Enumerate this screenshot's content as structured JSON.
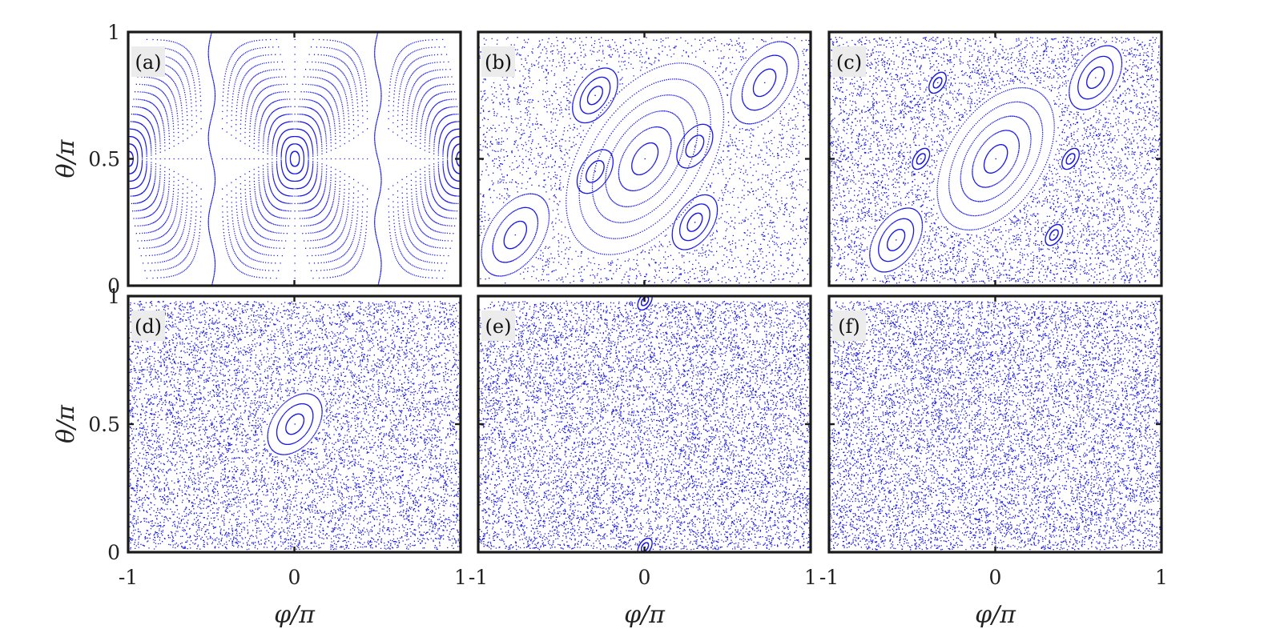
{
  "chart_data": {
    "type": "scatter",
    "layout": "2x3 grid of Poincaré section panels",
    "color": "#1a1ae6",
    "xlabel": "φ/π",
    "ylabel": "θ/π",
    "xlim": [
      -1,
      1
    ],
    "ylim": [
      0,
      1
    ],
    "xticks": [
      "-1",
      "0",
      "1"
    ],
    "yticks": [
      "0",
      "0.5",
      "1"
    ],
    "panels": [
      {
        "label": "(a)",
        "regime": "regular",
        "description_points": {
          "centers": [
            [
              0,
              0.5
            ],
            [
              -1,
              0.5
            ],
            [
              1,
              0.5
            ]
          ],
          "separatrix_x": [
            -0.5,
            0.5
          ],
          "closed_orbits_around_center": 16
        }
      },
      {
        "label": "(b)",
        "regime": "mixed",
        "islands": [
          {
            "cx": 0,
            "cy": 0.5,
            "scale": 1.0
          },
          {
            "cx": -0.78,
            "cy": 0.2,
            "scale": 0.45
          },
          {
            "cx": 0.72,
            "cy": 0.8,
            "scale": 0.45
          },
          {
            "cx": -0.3,
            "cy": 0.75,
            "scale": 0.3
          },
          {
            "cx": 0.3,
            "cy": 0.25,
            "scale": 0.3
          },
          {
            "cx": -0.3,
            "cy": 0.45,
            "scale": 0.25
          },
          {
            "cx": 0.3,
            "cy": 0.55,
            "scale": 0.25
          }
        ],
        "chaotic_density": 0.45
      },
      {
        "label": "(c)",
        "regime": "mostly chaotic",
        "islands": [
          {
            "cx": 0,
            "cy": 0.5,
            "scale": 0.75
          },
          {
            "cx": -0.6,
            "cy": 0.18,
            "scale": 0.35
          },
          {
            "cx": 0.6,
            "cy": 0.82,
            "scale": 0.35
          },
          {
            "cx": -0.45,
            "cy": 0.5,
            "scale": 0.12
          },
          {
            "cx": 0.45,
            "cy": 0.5,
            "scale": 0.12
          },
          {
            "cx": -0.35,
            "cy": 0.8,
            "scale": 0.12
          },
          {
            "cx": 0.35,
            "cy": 0.2,
            "scale": 0.12
          }
        ],
        "chaotic_density": 0.8
      },
      {
        "label": "(d)",
        "regime": "chaotic with small island",
        "islands": [
          {
            "cx": 0,
            "cy": 0.5,
            "scale": 0.35,
            "tilt": -0.45
          }
        ],
        "chaotic_density": 1.0
      },
      {
        "label": "(e)",
        "regime": "chaotic",
        "islands": [
          {
            "cx": 0,
            "cy": 0.98,
            "scale": 0.1
          },
          {
            "cx": 0,
            "cy": 0.02,
            "scale": 0.1
          }
        ],
        "chaotic_density": 1.1
      },
      {
        "label": "(f)",
        "regime": "fully chaotic",
        "islands": [],
        "chaotic_density": 1.15
      }
    ]
  }
}
